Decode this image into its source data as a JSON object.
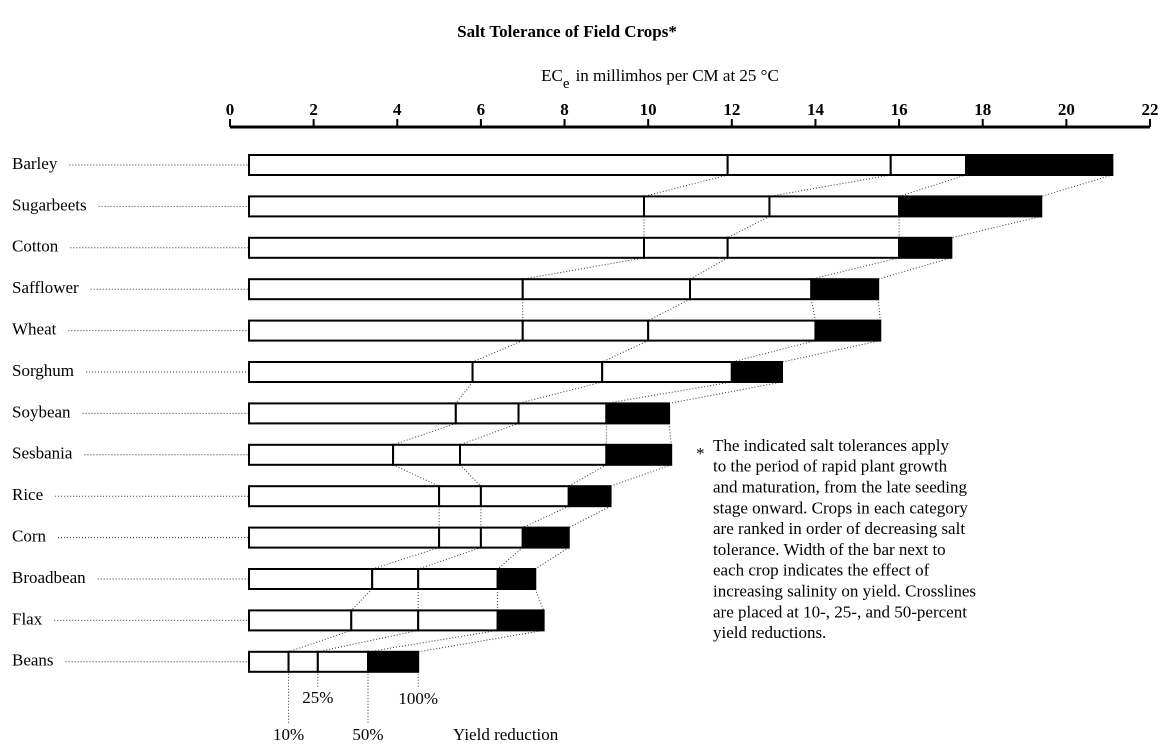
{
  "chart_data": {
    "type": "threshold-bar",
    "title": "Salt Tolerance of Field Crops*",
    "xlabel": {
      "main": "EC",
      "sub": "e",
      "rest": "in millimhos per CM at 25 °C"
    },
    "xlim": [
      0,
      22
    ],
    "xticks": [
      0,
      2,
      4,
      6,
      8,
      10,
      12,
      14,
      16,
      18,
      20,
      22
    ],
    "categories": [
      "Barley",
      "Sugarbeets",
      "Cotton",
      "Safflower",
      "Wheat",
      "Sorghum",
      "Soybean",
      "Sesbania",
      "Rice",
      "Corn",
      "Broadbean",
      "Flax",
      "Beans"
    ],
    "series": [
      {
        "name": "10%",
        "color": "#ffffff",
        "values": [
          11.9,
          9.9,
          9.9,
          7.0,
          7.0,
          5.8,
          5.4,
          3.9,
          5.0,
          5.0,
          3.4,
          2.9,
          1.4
        ]
      },
      {
        "name": "25%",
        "color": "#ffffff",
        "values": [
          15.8,
          12.9,
          11.9,
          11.0,
          10.0,
          8.9,
          6.9,
          5.5,
          6.0,
          6.0,
          4.5,
          4.5,
          2.1
        ]
      },
      {
        "name": "50%",
        "color": "#ffffff",
        "values": [
          17.6,
          16.0,
          16.0,
          13.9,
          14.0,
          12.0,
          9.0,
          9.0,
          8.1,
          7.0,
          6.4,
          6.4,
          3.3
        ]
      },
      {
        "name": "100%",
        "color": "#000000",
        "values": [
          21.1,
          19.4,
          17.25,
          15.5,
          15.55,
          13.2,
          10.5,
          10.55,
          9.1,
          8.1,
          7.3,
          7.5,
          4.5
        ]
      }
    ],
    "legend_title": "Yield reduction",
    "footnote": {
      "mark": "*",
      "lines": [
        "The indicated salt tolerances apply",
        "to the period of rapid plant growth",
        "and maturation, from the late seeding",
        "stage onward.  Crops in each category",
        "are ranked in order of decreasing salt",
        "tolerance.  Width of the bar next to",
        "each crop indicates the effect of",
        "increasing salinity on yield.  Crosslines",
        "are placed at 10-, 25-, and 50-percent",
        "yield reductions."
      ]
    }
  }
}
